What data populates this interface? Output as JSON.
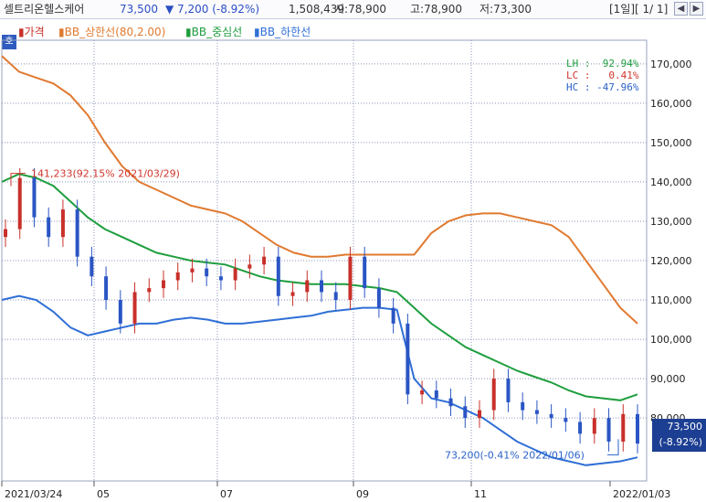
{
  "header": {
    "title": "셀트리온헬스케어",
    "price": "73,500",
    "change": "▼ 7,200 (-8.92%)",
    "volume": "1,508,439",
    "open": "시:78,900",
    "high": "고:78,900",
    "low": "저:73,300",
    "period": "[1일][ 1/ 1]",
    "prev_icon": "chevron-left-icon",
    "next_icon": "chevron-right-icon"
  },
  "tag": "호",
  "legend": [
    {
      "label": "가격",
      "color": "#c8302a"
    },
    {
      "label": "BB_상한선(80,2.00)",
      "color": "#e07a30"
    },
    {
      "label": "BB_중심선",
      "color": "#1e9e3e"
    },
    {
      "label": "BB_하한선",
      "color": "#2f6fd6"
    }
  ],
  "stats": {
    "lh": "LH :  92.94%",
    "lc": "LC :   0.41%",
    "hc": "HC : -47.96%"
  },
  "annotations": {
    "high": "141,233(92.15% 2021/03/29)",
    "low": "73,200(-0.41% 2022/01/06)"
  },
  "last_price": {
    "value": "73,500",
    "change": "(-8.92%)"
  },
  "colors": {
    "up": "#c8302a",
    "down": "#2a55c4",
    "upper": "#e07a30",
    "middle": "#1e9e3e",
    "lower": "#2f6fd6",
    "grid": "#8b95b8"
  },
  "chart_data": {
    "type": "line",
    "x_ticks": [
      "2021/03/24",
      "05",
      "07",
      "09",
      "11",
      "2022/01/03"
    ],
    "y_ticks": [
      170000,
      160000,
      150000,
      140000,
      130000,
      120000,
      110000,
      100000,
      90000,
      80000
    ],
    "ylim": [
      64000,
      176000
    ],
    "y_tick_labels": [
      "170,000",
      "160,000",
      "150,000",
      "140,000",
      "130,000",
      "120,000",
      "110,000",
      "100,000",
      "90,000",
      "80,000"
    ],
    "grid": true,
    "series": [
      {
        "name": "BB_상한선(80,2.00)",
        "values": [
          172000,
          168000,
          166500,
          165000,
          162000,
          157000,
          150000,
          144000,
          140000,
          138000,
          136000,
          134000,
          133000,
          132000,
          130000,
          127000,
          124000,
          122000,
          121000,
          121000,
          121500,
          121500,
          121500,
          121500,
          121500,
          127000,
          130000,
          131500,
          132000,
          132000,
          131000,
          130000,
          129000,
          126000,
          120000,
          114000,
          108000,
          104000
        ]
      },
      {
        "name": "BB_중심선",
        "values": [
          140000,
          142000,
          141000,
          139000,
          135000,
          131000,
          128000,
          126000,
          124000,
          122000,
          121000,
          120000,
          119500,
          119000,
          117500,
          116000,
          115000,
          114500,
          114000,
          114000,
          114000,
          113500,
          113000,
          112000,
          108000,
          104000,
          101000,
          98000,
          96000,
          94000,
          92000,
          90500,
          89000,
          87000,
          85500,
          85000,
          84500,
          86000
        ]
      },
      {
        "name": "BB_하한선",
        "values": [
          110000,
          111000,
          110000,
          107000,
          103000,
          101000,
          102000,
          103000,
          104000,
          104000,
          105000,
          105500,
          105000,
          104000,
          104000,
          104500,
          105000,
          105500,
          106000,
          107000,
          107500,
          108000,
          108000,
          107500,
          90000,
          85000,
          84000,
          82000,
          80000,
          77000,
          74000,
          72000,
          70000,
          69000,
          68000,
          68500,
          69000,
          70000
        ]
      },
      {
        "name": "가격",
        "values": [
          128000,
          141000,
          131000,
          126000,
          133000,
          121000,
          116000,
          110000,
          104000,
          112000,
          113000,
          115000,
          117000,
          118000,
          116000,
          115000,
          118000,
          119000,
          121000,
          111000,
          112000,
          115000,
          112000,
          110000,
          121000,
          113000,
          108000,
          104000,
          86000,
          87000,
          85000,
          83000,
          80000,
          82000,
          90000,
          84000,
          82000,
          81000,
          80000,
          79000,
          76000,
          80000,
          74000,
          81000,
          73500
        ]
      }
    ]
  }
}
